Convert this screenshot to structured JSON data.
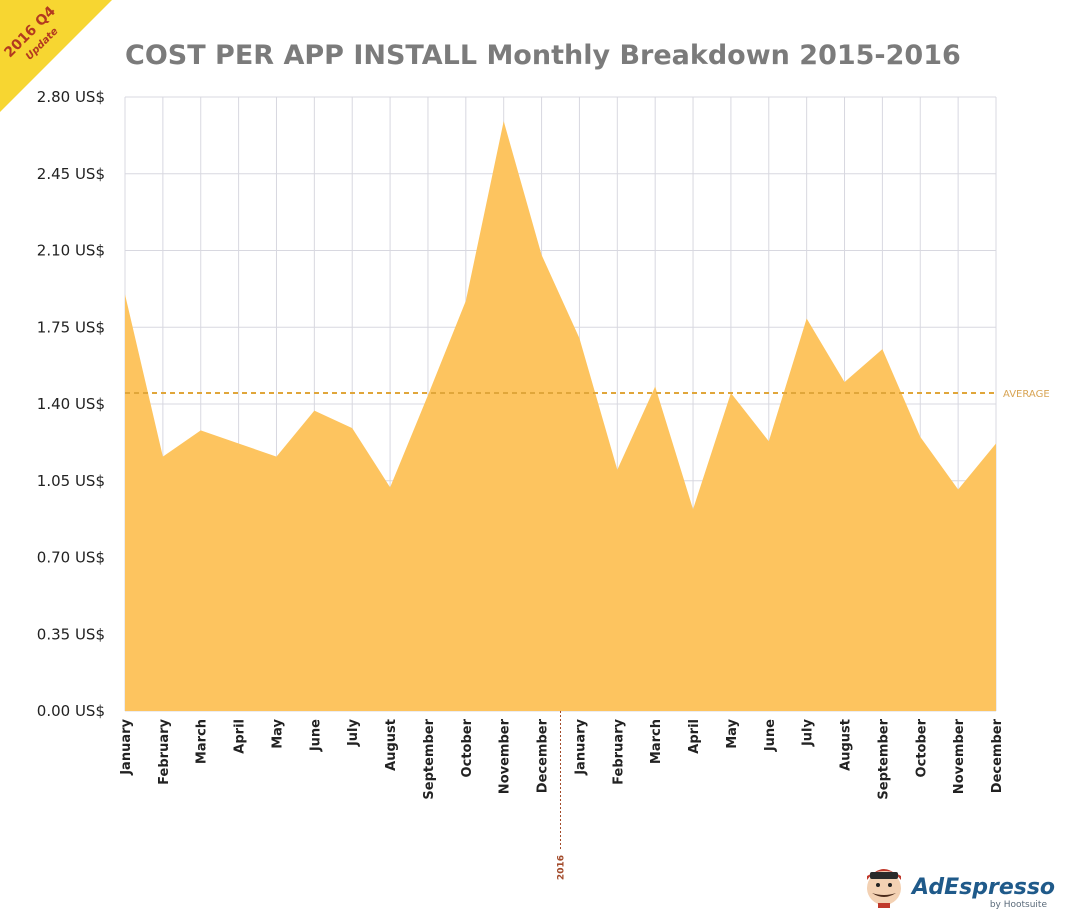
{
  "ribbon": {
    "line1": "2016 Q4",
    "line2": "Update"
  },
  "brand": {
    "name": "AdEspresso",
    "sub": "by Hootsuite"
  },
  "colors": {
    "area": "#fdc45f",
    "average": "#e0a63a",
    "grid": "#d8d8e0",
    "ribbon": "#f7d631",
    "year_marker": "#a24a2a"
  },
  "chart_data": {
    "type": "area",
    "title": "COST PER APP INSTALL Monthly Breakdown 2015-2016",
    "xlabel": "",
    "ylabel": "",
    "ylim": [
      0,
      2.8
    ],
    "y_ticks": [
      0,
      0.35,
      0.7,
      1.05,
      1.4,
      1.75,
      2.1,
      2.45,
      2.8
    ],
    "y_tick_labels": [
      "0.00 US$",
      "0.35 US$",
      "0.70 US$",
      "1.05 US$",
      "1.40 US$",
      "1.75 US$",
      "2.10 US$",
      "2.45 US$",
      "2.80 US$"
    ],
    "categories": [
      "January",
      "February",
      "March",
      "April",
      "May",
      "June",
      "July",
      "August",
      "September",
      "October",
      "November",
      "December",
      "January",
      "February",
      "March",
      "April",
      "May",
      "June",
      "July",
      "August",
      "September",
      "October",
      "November",
      "December"
    ],
    "series": [
      {
        "values": [
          1.9,
          1.16,
          1.28,
          1.22,
          1.16,
          1.37,
          1.29,
          1.02,
          1.44,
          1.87,
          2.69,
          2.08,
          1.7,
          1.1,
          1.48,
          0.92,
          1.45,
          1.23,
          1.79,
          1.5,
          1.65,
          1.25,
          1.01,
          1.22
        ]
      }
    ],
    "average": {
      "value": 1.45,
      "label": "AVERAGE"
    },
    "year_marker": {
      "after_index": 11,
      "label": "2016"
    },
    "grid": true,
    "legend": "none"
  }
}
